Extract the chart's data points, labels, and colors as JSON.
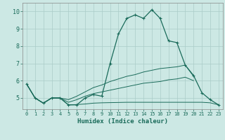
{
  "xlabel": "Humidex (Indice chaleur)",
  "bg_color": "#cce8e4",
  "line_color": "#1a6b5a",
  "grid_color": "#aaccc8",
  "axis_color": "#888888",
  "x_values": [
    0,
    1,
    2,
    3,
    4,
    5,
    6,
    7,
    8,
    9,
    10,
    11,
    12,
    13,
    14,
    15,
    16,
    17,
    18,
    19,
    20,
    21,
    22,
    23
  ],
  "main_curve": [
    5.8,
    5.0,
    4.7,
    5.0,
    5.0,
    4.6,
    4.6,
    5.0,
    5.2,
    5.1,
    7.0,
    8.7,
    9.6,
    9.8,
    9.6,
    10.1,
    9.6,
    8.3,
    8.2,
    6.9,
    6.3,
    5.3,
    4.9,
    4.6
  ],
  "line_upper": [
    5.8,
    5.0,
    4.7,
    5.0,
    5.0,
    4.9,
    5.1,
    5.35,
    5.6,
    5.75,
    5.95,
    6.1,
    6.25,
    6.35,
    6.5,
    6.6,
    6.7,
    6.75,
    6.8,
    6.9,
    6.25
  ],
  "line_mid": [
    5.8,
    5.0,
    4.7,
    5.0,
    5.0,
    4.75,
    4.9,
    5.1,
    5.25,
    5.35,
    5.45,
    5.55,
    5.65,
    5.75,
    5.85,
    5.9,
    5.95,
    6.05,
    6.1,
    6.2,
    6.0
  ],
  "line_lower": [
    5.8,
    5.0,
    4.7,
    5.0,
    5.0,
    4.6,
    4.62,
    4.65,
    4.7,
    4.72,
    4.73,
    4.74,
    4.75,
    4.75,
    4.75,
    4.75,
    4.75,
    4.75,
    4.75,
    4.75,
    4.75,
    4.75,
    4.72,
    4.6
  ],
  "ylim": [
    4.35,
    10.5
  ],
  "yticks": [
    5,
    6,
    7,
    8,
    9,
    10
  ],
  "xlim": [
    -0.5,
    23.5
  ]
}
